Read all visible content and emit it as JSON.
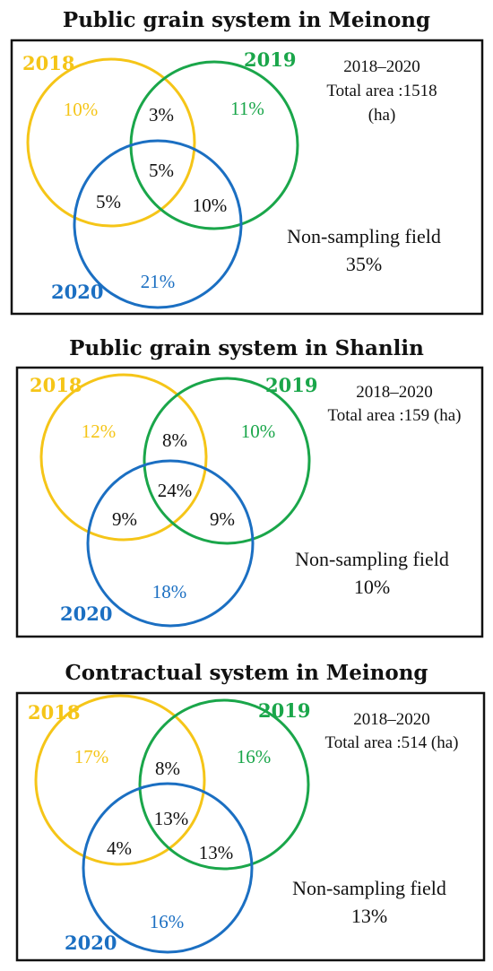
{
  "colors": {
    "y2018": "#f5c518",
    "y2019": "#1aa64a",
    "y2020": "#1b6fc2",
    "text": "#111111",
    "frame": "#111111"
  },
  "panels": [
    {
      "title": "Public grain system in Meinong",
      "year_labels": {
        "a": "2018",
        "b": "2019",
        "c": "2020"
      },
      "info": {
        "years": "2018–2020",
        "area": "Total area :1518",
        "unit": "(ha)"
      },
      "regions": {
        "only_2018": "10%",
        "only_2019": "11%",
        "only_2020": "21%",
        "y2018_2019": "3%",
        "y2018_2020": "5%",
        "y2019_2020": "10%",
        "all_three": "5%"
      },
      "non_sampling": {
        "label": "Non-sampling field",
        "value": "35%"
      }
    },
    {
      "title": "Public grain system in Shanlin",
      "year_labels": {
        "a": "2018",
        "b": "2019",
        "c": "2020"
      },
      "info": {
        "years": "2018–2020",
        "area": "Total area :159 (ha)",
        "unit": ""
      },
      "regions": {
        "only_2018": "12%",
        "only_2019": "10%",
        "only_2020": "18%",
        "y2018_2019": "8%",
        "y2018_2020": "9%",
        "y2019_2020": "9%",
        "all_three": "24%"
      },
      "non_sampling": {
        "label": "Non-sampling field",
        "value": "10%"
      }
    },
    {
      "title": "Contractual system in Meinong",
      "year_labels": {
        "a": "2018",
        "b": "2019",
        "c": "2020"
      },
      "info": {
        "years": "2018–2020",
        "area": "Total area :514 (ha)",
        "unit": ""
      },
      "regions": {
        "only_2018": "17%",
        "only_2019": "16%",
        "only_2020": "16%",
        "y2018_2019": "8%",
        "y2018_2020": "4%",
        "y2019_2020": "13%",
        "all_three": "13%"
      },
      "non_sampling": {
        "label": "Non-sampling field",
        "value": "13%"
      }
    }
  ]
}
